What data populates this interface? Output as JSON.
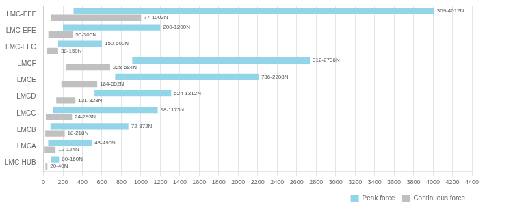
{
  "chart_data": {
    "type": "bar",
    "orientation": "horizontal",
    "categories": [
      "LMC-EFF",
      "LMC-EFE",
      "LMC-EFC",
      "LMCF",
      "LMCE",
      "LMCD",
      "LMCC",
      "LMCB",
      "LMCA",
      "LMC-HUB"
    ],
    "series": [
      {
        "name": "Peak force",
        "color": "#92D4E8",
        "values": [
          [
            309,
            4012
          ],
          [
            200,
            1200
          ],
          [
            150,
            600
          ],
          [
            912,
            2736
          ],
          [
            736,
            2208
          ],
          [
            524,
            1312
          ],
          [
            98,
            1173
          ],
          [
            72,
            872
          ],
          [
            48,
            496
          ],
          [
            80,
            160
          ]
        ],
        "value_labels": [
          "309-4012N",
          "200-1200N",
          "150-600N",
          "912-2736N",
          "736-2208N",
          "524-1312N",
          "98-1173N",
          "72-872N",
          "48-496N",
          "80-160N"
        ]
      },
      {
        "name": "Continuous force",
        "color": "#C0C0C0",
        "values": [
          [
            77,
            1003
          ],
          [
            50,
            300
          ],
          [
            38,
            150
          ],
          [
            228,
            684
          ],
          [
            184,
            552
          ],
          [
            131,
            328
          ],
          [
            24,
            293
          ],
          [
            18,
            218
          ],
          [
            12,
            124
          ],
          [
            20,
            40
          ]
        ],
        "value_labels": [
          "77-1003N",
          "50-300N",
          "38-150N",
          "228-684N",
          "184-552N",
          "131-328N",
          "24-293N",
          "18-218N",
          "12-124N",
          "20-40N"
        ]
      }
    ],
    "xlim": [
      0,
      4400
    ],
    "xticks": [
      0,
      200,
      400,
      600,
      800,
      1000,
      1200,
      1400,
      1600,
      1800,
      2000,
      2200,
      2400,
      2600,
      2800,
      3000,
      3200,
      3400,
      3600,
      3800,
      4000,
      4200,
      4400
    ],
    "grid": true,
    "legend": "lower right",
    "data_labels": true
  }
}
